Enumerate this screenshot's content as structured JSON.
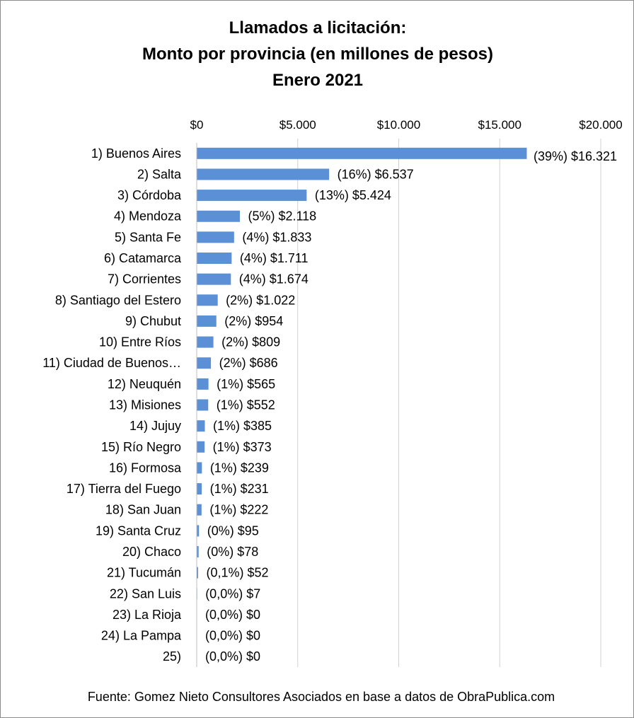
{
  "chart_data": {
    "type": "bar",
    "orientation": "horizontal",
    "title": [
      "Llamados a licitación:",
      "Monto por provincia (en millones de pesos)",
      "Enero 2021"
    ],
    "source": "Fuente: Gomez Nieto Consultores Asociados en base a datos de ObraPublica.com",
    "xlim": [
      0,
      20000
    ],
    "x_ticks": [
      "$0",
      "$5.000",
      "$10.000",
      "$15.000",
      "$20.000"
    ],
    "x_axis_position": "top",
    "grid": "vertical",
    "legend": "none",
    "bar_color": "#5b8fd6",
    "categories": [
      "1) Buenos Aires",
      "2) Salta",
      "3) Córdoba",
      "4) Mendoza",
      "5) Santa Fe",
      "6) Catamarca",
      "7) Corrientes",
      "8) Santiago del Estero",
      "9) Chubut",
      "10) Entre Ríos",
      "11) Ciudad de Buenos…",
      "12) Neuquén",
      "13) Misiones",
      "14) Jujuy",
      "15) Río Negro",
      "16) Formosa",
      "17) Tierra del Fuego",
      "18) San Juan",
      "19) Santa Cruz",
      "20) Chaco",
      "21) Tucumán",
      "22) San Luis",
      "23) La Rioja",
      "24) La Pampa",
      "25)"
    ],
    "values": [
      16321,
      6537,
      5424,
      2118,
      1833,
      1711,
      1674,
      1022,
      954,
      809,
      686,
      565,
      552,
      385,
      373,
      239,
      231,
      222,
      95,
      78,
      52,
      7,
      0,
      0,
      0
    ],
    "data_labels": [
      "(39%) $16.321",
      "(16%) $6.537",
      "(13%) $5.424",
      "(5%) $2.118",
      "(4%) $1.833",
      "(4%) $1.711",
      "(4%) $1.674",
      "(2%) $1.022",
      "(2%) $954",
      "(2%) $809",
      "(2%) $686",
      "(1%) $565",
      "(1%) $552",
      "(1%) $385",
      "(1%) $373",
      "(1%) $239",
      "(1%) $231",
      "(1%) $222",
      "(0%) $95",
      "(0%) $78",
      "(0,1%) $52",
      "(0,0%) $7",
      "(0,0%) $0",
      "(0,0%) $0",
      "(0,0%) $0"
    ]
  }
}
